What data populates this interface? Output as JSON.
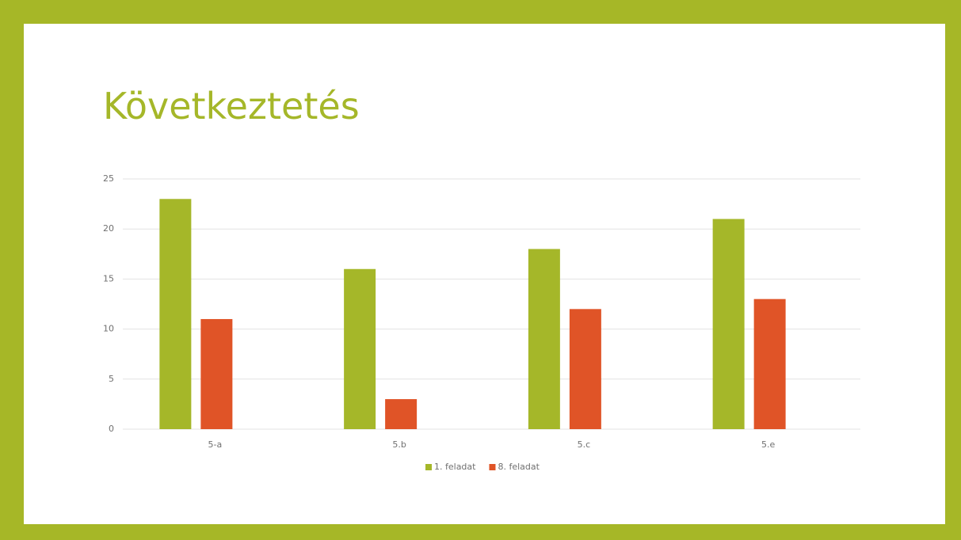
{
  "chart_data": {
    "type": "bar",
    "title": "Következtetés",
    "categories": [
      "5-a",
      "5.b",
      "5.c",
      "5.e"
    ],
    "series": [
      {
        "name": "1. feladat",
        "color": "#a5b729",
        "values": [
          23,
          16,
          18,
          21
        ]
      },
      {
        "name": "8. feladat",
        "color": "#e05427",
        "values": [
          11,
          3,
          12,
          13
        ]
      }
    ],
    "ylim": [
      0,
      25
    ],
    "yticks": [
      0,
      5,
      10,
      15,
      20,
      25
    ],
    "grid": true,
    "legend": "bottom"
  }
}
